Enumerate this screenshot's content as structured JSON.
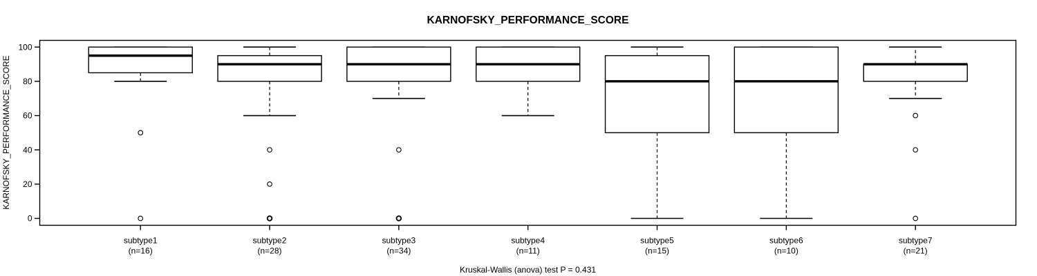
{
  "page": {
    "background": "#ffffff"
  },
  "chart_data": {
    "type": "boxplot",
    "title": "KARNOFSKY_PERFORMANCE_SCORE",
    "ylabel": "KARNOFSKY_PERFORMANCE_SCORE",
    "xlabel": "",
    "footer": "Kruskal-Wallis (anova) test P = 0.431",
    "ylim": [
      0,
      100
    ],
    "yticks": [
      0,
      20,
      40,
      60,
      80,
      100
    ],
    "grid": false,
    "legend": "none",
    "frame": true,
    "whisker_style": "dashed",
    "colors": {
      "line": "#000000",
      "box_fill": "#ffffff",
      "background": "#ffffff"
    },
    "groups": [
      {
        "label": "subtype1",
        "sublabel": "(n=16)",
        "n": 16,
        "whisker_low": 80,
        "q1": 85,
        "median": 95,
        "q3": 100,
        "whisker_high": 100,
        "outliers": [
          50,
          0
        ],
        "bold_outliers": []
      },
      {
        "label": "subtype2",
        "sublabel": "(n=28)",
        "n": 28,
        "whisker_low": 60,
        "q1": 80,
        "median": 90,
        "q3": 95,
        "whisker_high": 100,
        "outliers": [
          40,
          20,
          0
        ],
        "bold_outliers": [
          0
        ]
      },
      {
        "label": "subtype3",
        "sublabel": "(n=34)",
        "n": 34,
        "whisker_low": 70,
        "q1": 80,
        "median": 90,
        "q3": 100,
        "whisker_high": 100,
        "outliers": [
          40,
          0
        ],
        "bold_outliers": [
          0
        ]
      },
      {
        "label": "subtype4",
        "sublabel": "(n=11)",
        "n": 11,
        "whisker_low": 60,
        "q1": 80,
        "median": 90,
        "q3": 100,
        "whisker_high": 100,
        "outliers": [],
        "bold_outliers": []
      },
      {
        "label": "subtype5",
        "sublabel": "(n=15)",
        "n": 15,
        "whisker_low": 0,
        "q1": 50,
        "median": 80,
        "q3": 95,
        "whisker_high": 100,
        "outliers": [],
        "bold_outliers": []
      },
      {
        "label": "subtype6",
        "sublabel": "(n=10)",
        "n": 10,
        "whisker_low": 0,
        "q1": 50,
        "median": 80,
        "q3": 100,
        "whisker_high": 100,
        "outliers": [],
        "bold_outliers": []
      },
      {
        "label": "subtype7",
        "sublabel": "(n=21)",
        "n": 21,
        "whisker_low": 70,
        "q1": 80,
        "median": 90,
        "q3": 90,
        "whisker_high": 100,
        "outliers": [
          60,
          40,
          0
        ],
        "bold_outliers": []
      }
    ]
  }
}
